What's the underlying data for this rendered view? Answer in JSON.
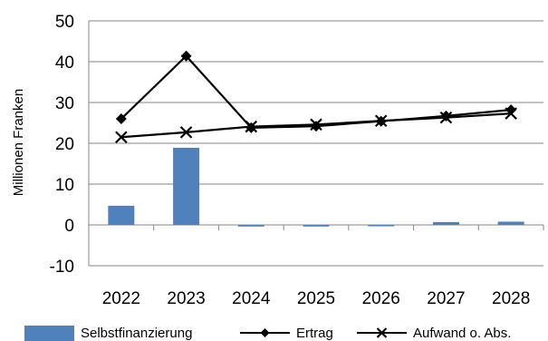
{
  "chart_data": {
    "type": "bar",
    "categories": [
      "2022",
      "2023",
      "2024",
      "2025",
      "2026",
      "2027",
      "2028"
    ],
    "ylabel": "Millionen Franken",
    "ylim": [
      -10,
      50
    ],
    "yticks": [
      -10,
      0,
      10,
      20,
      30,
      40,
      50
    ],
    "grid": true,
    "legend_position": "bottom",
    "series": [
      {
        "name": "Selbstfinanzierung",
        "kind": "bar",
        "color": "#4f81bd",
        "values": [
          4.7,
          18.9,
          -0.4,
          -0.4,
          -0.2,
          0.7,
          0.8
        ]
      },
      {
        "name": "Ertrag",
        "kind": "line",
        "marker": "diamond",
        "color": "#000000",
        "values": [
          26.0,
          41.4,
          23.8,
          24.2,
          25.4,
          26.7,
          28.2
        ]
      },
      {
        "name": "Aufwand o. Abs.",
        "kind": "line",
        "marker": "x",
        "color": "#000000",
        "values": [
          21.5,
          22.7,
          24.1,
          24.6,
          25.5,
          26.3,
          27.3
        ]
      }
    ]
  }
}
